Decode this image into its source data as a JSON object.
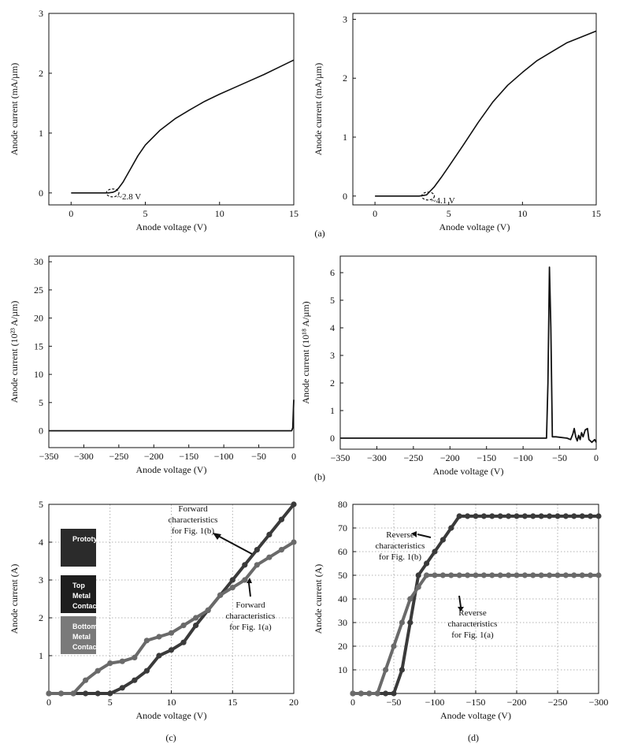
{
  "captions": [
    "(a)",
    "(b)",
    "(c)",
    "(d)"
  ],
  "colors": {
    "line": "#111111",
    "dark_series": "#3a3a3a",
    "light_series": "#6a6a6a",
    "grid": "#9a9a9a"
  },
  "chart_data": [
    {
      "id": "a1",
      "type": "line",
      "xlabel": "Anode voltage (V)",
      "ylabel": "Anode current (mA/µm)",
      "xlim": [
        -1.5,
        15
      ],
      "ylim": [
        -0.2,
        3
      ],
      "xticks": [
        0,
        5,
        10,
        15
      ],
      "yticks": [
        0,
        1,
        2,
        3
      ],
      "grid": false,
      "series": [
        {
          "x": [
            0,
            2.5,
            2.8,
            3,
            3.2,
            3.5,
            4,
            4.5,
            5,
            6,
            7,
            8,
            9,
            10,
            11,
            12,
            13,
            14,
            15
          ],
          "y": [
            0,
            0,
            0.01,
            0.03,
            0.08,
            0.18,
            0.4,
            0.62,
            0.8,
            1.05,
            1.24,
            1.39,
            1.53,
            1.65,
            1.76,
            1.87,
            1.98,
            2.1,
            2.22
          ]
        }
      ],
      "annotations": [
        {
          "text": "~2.8 V",
          "x": 2.8,
          "y": 0
        }
      ]
    },
    {
      "id": "a2",
      "type": "line",
      "xlabel": "Anode voltage (V)",
      "ylabel": "Anode current (mA/µm)",
      "xlim": [
        -1.5,
        15
      ],
      "ylim": [
        -0.15,
        3.1
      ],
      "xticks": [
        0,
        5,
        10,
        15
      ],
      "yticks": [
        0,
        1,
        2,
        3
      ],
      "grid": false,
      "series": [
        {
          "x": [
            0,
            3,
            3.5,
            4,
            4.5,
            5,
            6,
            7,
            8,
            9,
            10,
            11,
            12,
            13,
            14,
            15
          ],
          "y": [
            0,
            0,
            0.02,
            0.15,
            0.32,
            0.5,
            0.87,
            1.25,
            1.6,
            1.88,
            2.1,
            2.3,
            2.45,
            2.6,
            2.7,
            2.8
          ]
        }
      ],
      "annotations": [
        {
          "text": "~4.1 V",
          "x": 3.6,
          "y": 0
        }
      ]
    },
    {
      "id": "b1",
      "type": "line",
      "xlabel": "Anode voltage (V)",
      "ylabel": "Anode current (10²³ A/µm)",
      "xlim": [
        -350,
        0
      ],
      "ylim": [
        -3,
        31
      ],
      "xticks": [
        -350,
        -300,
        -250,
        -200,
        -150,
        -100,
        -50,
        0
      ],
      "yticks": [
        0,
        5,
        10,
        15,
        20,
        25,
        30
      ],
      "grid": false,
      "series": [
        {
          "x": [
            -350,
            -3,
            -1.5,
            0
          ],
          "y": [
            0,
            0,
            0.5,
            5.5
          ]
        }
      ]
    },
    {
      "id": "b2",
      "type": "line",
      "xlabel": "Anode voltage (V)",
      "ylabel": "Anode current (10¹⁸ A/µm)",
      "xlim": [
        -350,
        0
      ],
      "ylim": [
        -0.4,
        6.6
      ],
      "xticks": [
        -350,
        -300,
        -250,
        -200,
        -150,
        -100,
        -50,
        0
      ],
      "yticks": [
        0,
        1,
        2,
        3,
        4,
        5,
        6
      ],
      "grid": false,
      "series": [
        {
          "x": [
            -350,
            -68,
            -66,
            -64,
            -62,
            -60,
            -55,
            -40,
            -35,
            -32,
            -30,
            -28,
            -26,
            -24,
            -22,
            -20,
            -18,
            -15,
            -12,
            -10,
            -8,
            -6,
            -4,
            -2,
            0
          ],
          "y": [
            0,
            0,
            2,
            6.2,
            4,
            0.05,
            0.05,
            0,
            -0.05,
            0.15,
            0.35,
            0.05,
            -0.1,
            0.1,
            -0.05,
            0.2,
            0.05,
            0.3,
            0.35,
            -0.05,
            -0.1,
            -0.15,
            -0.1,
            -0.05,
            -0.15
          ]
        }
      ]
    },
    {
      "id": "c",
      "type": "line",
      "xlabel": "Anode voltage (V)",
      "ylabel": "Anode current (A)",
      "xlim": [
        0,
        20
      ],
      "ylim": [
        0,
        5
      ],
      "xticks": [
        0,
        5,
        10,
        15,
        20
      ],
      "yticks": [
        1,
        2,
        3,
        4,
        5
      ],
      "grid": true,
      "series": [
        {
          "name": "Fig. 1(b)",
          "x": [
            0,
            1,
            2,
            3,
            4,
            5,
            6,
            7,
            8,
            9,
            10,
            11,
            12,
            13,
            14,
            15,
            16,
            17,
            18,
            19,
            20
          ],
          "y": [
            0,
            0,
            0,
            0,
            0,
            0,
            0.15,
            0.35,
            0.6,
            1.0,
            1.15,
            1.35,
            1.8,
            2.2,
            2.6,
            3.0,
            3.4,
            3.8,
            4.2,
            4.6,
            5.0
          ]
        },
        {
          "name": "Fig. 1(a)",
          "x": [
            0,
            1,
            2,
            3,
            4,
            5,
            6,
            7,
            8,
            9,
            10,
            11,
            12,
            13,
            14,
            15,
            16,
            17,
            18,
            19,
            20
          ],
          "y": [
            0,
            0,
            0,
            0.35,
            0.6,
            0.8,
            0.85,
            0.95,
            1.4,
            1.5,
            1.6,
            1.8,
            2.0,
            2.2,
            2.6,
            2.8,
            3.0,
            3.4,
            3.6,
            3.8,
            4.0
          ]
        }
      ],
      "annotations": [
        {
          "lines": [
            "Forward",
            "characteristics",
            "for Fig. 1(b)"
          ]
        },
        {
          "lines": [
            "Forward",
            "characteristics",
            "for Fig. 1(a)"
          ]
        }
      ],
      "inset_labels": [
        [
          "Prototype"
        ],
        [
          "Top",
          "Metal",
          "Contact"
        ],
        [
          "Bottom",
          "Metal",
          "Contact"
        ]
      ]
    },
    {
      "id": "d",
      "type": "line",
      "xlabel": "Anode voltage (V)",
      "ylabel": "Anode current (A)",
      "xlim": [
        0,
        -300
      ],
      "ylim": [
        0,
        80
      ],
      "xticks": [
        0,
        -50,
        -100,
        -150,
        -200,
        -250,
        -300
      ],
      "yticks": [
        10,
        20,
        30,
        40,
        50,
        60,
        70,
        80
      ],
      "grid": true,
      "series": [
        {
          "name": "Fig. 1(b)",
          "x": [
            0,
            -10,
            -20,
            -30,
            -40,
            -50,
            -60,
            -70,
            -80,
            -90,
            -100,
            -110,
            -120,
            -130,
            -140,
            -150,
            -160,
            -170,
            -180,
            -190,
            -200,
            -210,
            -220,
            -230,
            -240,
            -250,
            -260,
            -270,
            -280,
            -290,
            -300
          ],
          "y": [
            0,
            0,
            0,
            0,
            0,
            0,
            10,
            30,
            50,
            55,
            60,
            65,
            70,
            75,
            75,
            75,
            75,
            75,
            75,
            75,
            75,
            75,
            75,
            75,
            75,
            75,
            75,
            75,
            75,
            75,
            75
          ]
        },
        {
          "name": "Fig. 1(a)",
          "x": [
            0,
            -10,
            -20,
            -30,
            -40,
            -50,
            -60,
            -70,
            -80,
            -90,
            -100,
            -110,
            -120,
            -130,
            -140,
            -150,
            -160,
            -170,
            -180,
            -190,
            -200,
            -210,
            -220,
            -230,
            -240,
            -250,
            -260,
            -270,
            -280,
            -290,
            -300
          ],
          "y": [
            0,
            0,
            0,
            0,
            10,
            20,
            30,
            40,
            45,
            50,
            50,
            50,
            50,
            50,
            50,
            50,
            50,
            50,
            50,
            50,
            50,
            50,
            50,
            50,
            50,
            50,
            50,
            50,
            50,
            50,
            50
          ]
        }
      ],
      "annotations": [
        {
          "lines": [
            "Reverse",
            "characteristics",
            "for Fig. 1(b)"
          ]
        },
        {
          "lines": [
            "Reverse",
            "characteristics",
            "for Fig. 1(a)"
          ]
        }
      ]
    }
  ]
}
